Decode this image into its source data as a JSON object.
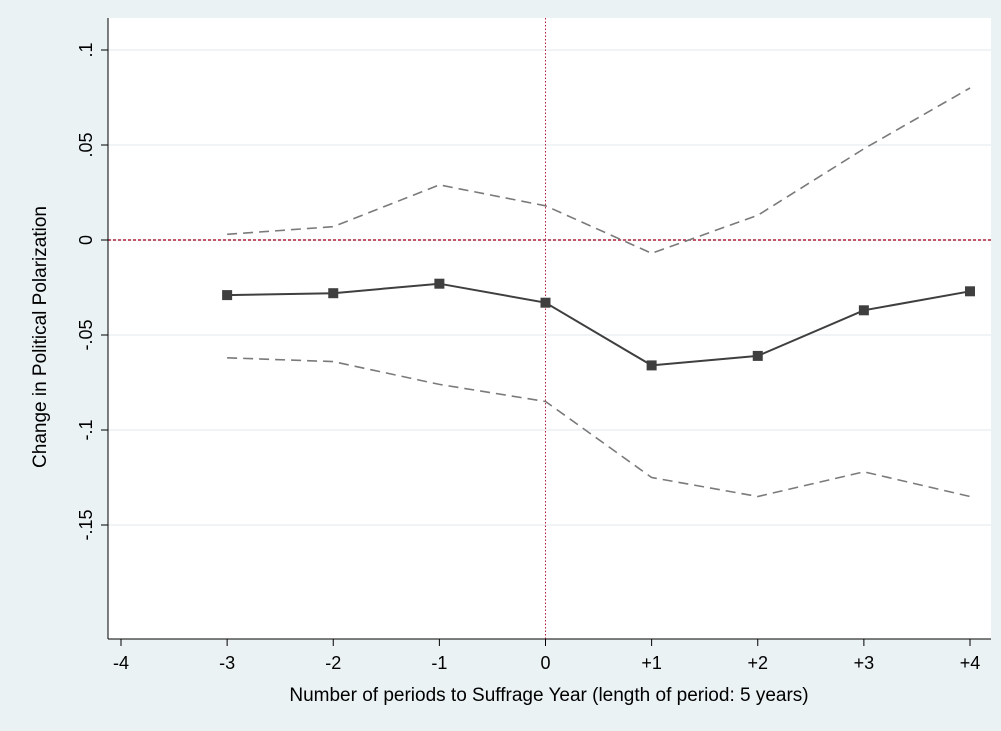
{
  "chart_data": {
    "type": "line",
    "xlabel": "Number of periods to Suffrage Year (length of period: 5 years)",
    "ylabel": "Change in Political Polarization",
    "xlim": [
      -4,
      4
    ],
    "ylim": [
      -0.2,
      0.1
    ],
    "x_ticks": [
      {
        "value": -4,
        "label": "-4"
      },
      {
        "value": -3,
        "label": "-3"
      },
      {
        "value": -2,
        "label": "-2"
      },
      {
        "value": -1,
        "label": "-1"
      },
      {
        "value": 0,
        "label": "0"
      },
      {
        "value": 1,
        "label": "+1"
      },
      {
        "value": 2,
        "label": "+2"
      },
      {
        "value": 3,
        "label": "+3"
      },
      {
        "value": 4,
        "label": "+4"
      }
    ],
    "y_ticks": [
      {
        "value": 0.1,
        "label": ".1"
      },
      {
        "value": 0.05,
        "label": ".05"
      },
      {
        "value": 0,
        "label": "0"
      },
      {
        "value": -0.05,
        "label": "-.05"
      },
      {
        "value": -0.1,
        "label": "-.1"
      },
      {
        "value": -0.15,
        "label": "-.15"
      }
    ],
    "grid": true,
    "x": [
      -3,
      -2,
      -1,
      0,
      1,
      2,
      3,
      4
    ],
    "series": [
      {
        "role": "estimate",
        "values": [
          -0.029,
          -0.028,
          -0.023,
          -0.033,
          -0.066,
          -0.061,
          -0.037,
          -0.027
        ],
        "color": "#3f3f3f",
        "style": "solid",
        "marker": "square"
      },
      {
        "role": "upper-ci",
        "values": [
          0.003,
          0.007,
          0.029,
          0.018,
          -0.007,
          0.013,
          0.048,
          0.08
        ],
        "color": "#7a7a7a",
        "style": "dashed"
      },
      {
        "role": "lower-ci",
        "values": [
          -0.062,
          -0.064,
          -0.076,
          -0.085,
          -0.125,
          -0.135,
          -0.122,
          -0.135
        ],
        "color": "#7a7a7a",
        "style": "dashed"
      }
    ],
    "reference_lines": [
      {
        "axis": "y",
        "value": 0,
        "color": "#b0213a",
        "style": "dotted"
      },
      {
        "axis": "x",
        "value": 0,
        "color": "#b0213a",
        "style": "dotted"
      }
    ]
  }
}
